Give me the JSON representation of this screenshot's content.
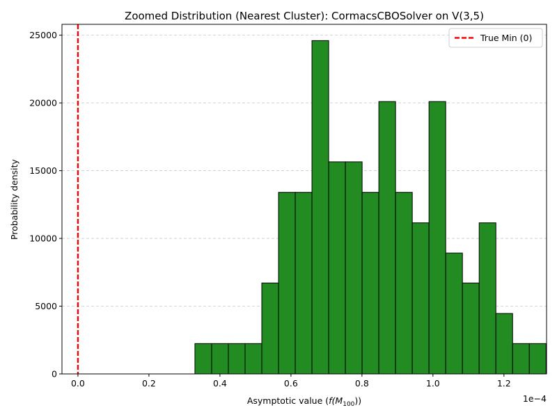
{
  "chart_data": {
    "type": "bar",
    "title": "Zoomed Distribution (Nearest Cluster): CormacsCBOSolver on V(3,5)",
    "xlabel_prefix": "Asymptotic value (",
    "xlabel_math": "f(M",
    "xlabel_sub": "100",
    "xlabel_suffix": "))",
    "ylabel": "Probability density",
    "offset_label": "1e−4",
    "xlim": [
      -0.045,
      1.32
    ],
    "ylim": [
      0,
      25800
    ],
    "x_ticks": [
      0.0,
      0.2,
      0.4,
      0.6,
      0.8,
      1.0,
      1.2
    ],
    "x_tick_labels": [
      "0.0",
      "0.2",
      "0.4",
      "0.6",
      "0.8",
      "1.0",
      "1.2"
    ],
    "y_ticks": [
      0,
      5000,
      10000,
      15000,
      20000,
      25000
    ],
    "y_tick_labels": [
      "0",
      "5000",
      "10000",
      "15000",
      "20000",
      "25000"
    ],
    "grid": "y-dashed",
    "bar_color": "#228b22",
    "bar_edge_color": "#000000",
    "bins": [
      {
        "x0": 0.3295,
        "x1": 0.3766,
        "y": 2240
      },
      {
        "x0": 0.3766,
        "x1": 0.4237,
        "y": 2240
      },
      {
        "x0": 0.4237,
        "x1": 0.4708,
        "y": 2240
      },
      {
        "x0": 0.4708,
        "x1": 0.5179,
        "y": 2240
      },
      {
        "x0": 0.5179,
        "x1": 0.565,
        "y": 6710
      },
      {
        "x0": 0.565,
        "x1": 0.6121,
        "y": 13400
      },
      {
        "x0": 0.6121,
        "x1": 0.6592,
        "y": 13400
      },
      {
        "x0": 0.6592,
        "x1": 0.7063,
        "y": 24600
      },
      {
        "x0": 0.7063,
        "x1": 0.7534,
        "y": 15650
      },
      {
        "x0": 0.7534,
        "x1": 0.8005,
        "y": 15650
      },
      {
        "x0": 0.8005,
        "x1": 0.8476,
        "y": 13400
      },
      {
        "x0": 0.8476,
        "x1": 0.8947,
        "y": 20100
      },
      {
        "x0": 0.8947,
        "x1": 0.9418,
        "y": 13400
      },
      {
        "x0": 0.9418,
        "x1": 0.9889,
        "y": 11150
      },
      {
        "x0": 0.9889,
        "x1": 1.036,
        "y": 20100
      },
      {
        "x0": 1.036,
        "x1": 1.0831,
        "y": 8920
      },
      {
        "x0": 1.0831,
        "x1": 1.1302,
        "y": 6710
      },
      {
        "x0": 1.1302,
        "x1": 1.1773,
        "y": 11150
      },
      {
        "x0": 1.1773,
        "x1": 1.2244,
        "y": 4460
      },
      {
        "x0": 1.2244,
        "x1": 1.2715,
        "y": 2240
      },
      {
        "x0": 1.2715,
        "x1": 1.3186,
        "y": 2240
      }
    ],
    "vline": {
      "x": 0,
      "color": "#ff0000",
      "label": "True Min (0)"
    },
    "legend": "top-right"
  }
}
